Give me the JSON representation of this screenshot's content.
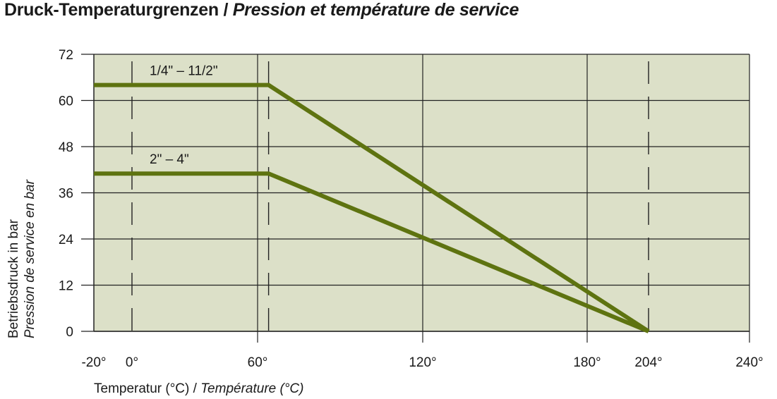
{
  "chart_data": {
    "type": "line",
    "title": "Druck-Temperaturgrenzen",
    "title_fr": "Pression et température de service",
    "xlabel": "Temperatur (°C)",
    "xlabel_fr": "Température (°C)",
    "ylabel": "Betriebsdruck in bar",
    "ylabel_fr": "Pression de service en bar",
    "x_ticks": [
      -20,
      0,
      60,
      120,
      180,
      204,
      240
    ],
    "x_tick_labels": [
      "-20°",
      "0°",
      "60°",
      "120°",
      "180°",
      "204°",
      "240°"
    ],
    "y_ticks": [
      0,
      12,
      24,
      36,
      48,
      60,
      72
    ],
    "y_tick_labels": [
      "0",
      "12",
      "24",
      "36",
      "48",
      "60",
      "72"
    ],
    "xlim": [
      -20,
      240
    ],
    "ylim": [
      0,
      72
    ],
    "grid": true,
    "dashed_reference_x": [
      0,
      64,
      204
    ],
    "background_color": "#dce0c8",
    "line_color": "#5e7310",
    "series": [
      {
        "name": "1/4\" – 11/2\"",
        "x": [
          -20,
          64,
          204
        ],
        "y": [
          64,
          64,
          0
        ]
      },
      {
        "name": "2\" – 4\"",
        "x": [
          -20,
          64,
          204
        ],
        "y": [
          41,
          41,
          0
        ]
      }
    ]
  }
}
